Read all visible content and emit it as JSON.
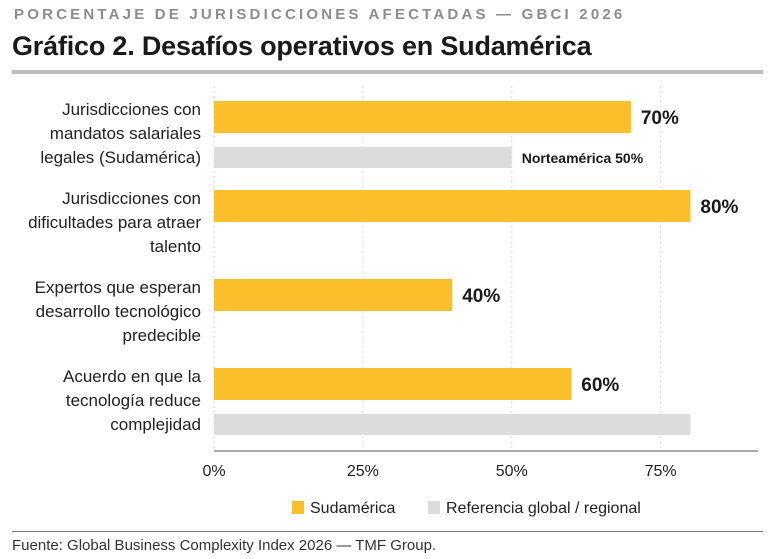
{
  "kicker": "PORCENTAJE DE JURISDICCIONES AFECTADAS — GBCI 2026",
  "title": "Gráfico 2. Desafíos operativos en Sudamérica",
  "source": "Fuente: Global Business Complexity Index 2026 — TMF Group.",
  "colors": {
    "primary": "#fbbf2b",
    "reference": "#dcdcdc",
    "grid": "#d9d9d9",
    "axis": "#555555"
  },
  "chart_data": {
    "type": "bar",
    "orientation": "horizontal",
    "categories": [
      [
        "Jurisdicciones con",
        "mandatos salariales",
        "legales (Sudamérica)"
      ],
      [
        "Jurisdicciones con",
        "dificultades para atraer",
        "talento"
      ],
      [
        "Expertos que esperan",
        "desarrollo tecnológico",
        "predecible"
      ],
      [
        "Acuerdo en que la",
        "tecnología reduce",
        "complejidad"
      ]
    ],
    "series": [
      {
        "name": "Sudamérica",
        "values": [
          70,
          80,
          40,
          60
        ],
        "labels": [
          "70%",
          "80%",
          "40%",
          "60%"
        ]
      },
      {
        "name": "Referencia global / regional",
        "values": [
          50,
          null,
          null,
          80
        ],
        "labels": [
          "Norteamérica 50%",
          "",
          "",
          ""
        ]
      }
    ],
    "xlim": [
      0,
      92
    ],
    "xticks": [
      0,
      25,
      50,
      75
    ],
    "xtick_labels": [
      "0%",
      "25%",
      "50%",
      "75%"
    ],
    "grid": true,
    "legend_position": "bottom"
  }
}
